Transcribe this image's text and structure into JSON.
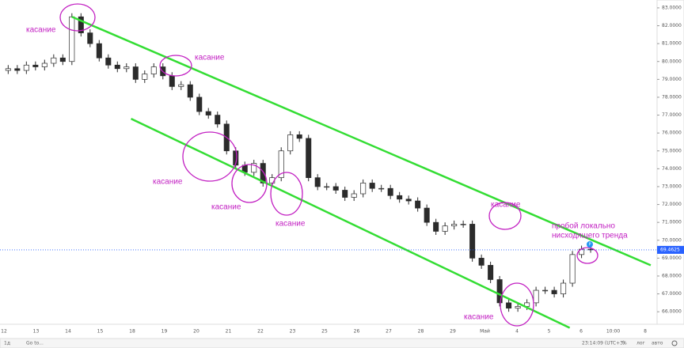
{
  "chart_data": {
    "type": "candlestick",
    "open": [
      79.5,
      79.6,
      79.5,
      79.8,
      79.7,
      79.9,
      80.2,
      80.0,
      82.5,
      81.6,
      81.0,
      80.2,
      79.8,
      79.6,
      79.7,
      79.0,
      79.3,
      79.7,
      79.2,
      78.6,
      78.7,
      78.0,
      77.2,
      77.0,
      76.5,
      75.0,
      74.2,
      73.8,
      74.3,
      73.2,
      73.5,
      75.0,
      75.9,
      75.7,
      73.5,
      73.0,
      73.0,
      72.8,
      72.4,
      72.6,
      73.2,
      72.9,
      72.9,
      72.5,
      72.3,
      72.2,
      71.8,
      71.0,
      70.5,
      70.8,
      70.9,
      70.9,
      69.0,
      68.6,
      67.8,
      66.5,
      66.2,
      66.3,
      66.5,
      67.2,
      67.2,
      67.0,
      67.6,
      69.2,
      69.5
    ],
    "high": [
      79.8,
      79.8,
      80.0,
      80.0,
      80.1,
      80.4,
      80.4,
      82.7,
      82.7,
      81.8,
      81.2,
      80.4,
      80.0,
      79.9,
      79.9,
      79.5,
      79.9,
      79.9,
      79.4,
      78.9,
      78.9,
      78.2,
      77.4,
      77.2,
      76.7,
      75.2,
      74.4,
      74.5,
      74.5,
      73.7,
      75.2,
      76.1,
      76.1,
      75.9,
      73.7,
      73.2,
      73.2,
      73.0,
      72.8,
      73.4,
      73.4,
      73.1,
      73.1,
      72.7,
      72.5,
      72.4,
      72.0,
      71.2,
      71.0,
      71.1,
      71.1,
      71.1,
      69.2,
      68.8,
      68.0,
      66.7,
      66.5,
      66.7,
      67.4,
      67.4,
      67.4,
      67.8,
      69.4,
      69.7,
      69.7
    ],
    "low": [
      79.3,
      79.3,
      79.3,
      79.5,
      79.5,
      79.7,
      79.8,
      79.8,
      81.4,
      80.8,
      80.0,
      79.6,
      79.4,
      79.4,
      78.8,
      78.8,
      79.1,
      79.0,
      78.4,
      78.4,
      77.8,
      77.0,
      76.8,
      76.3,
      74.8,
      74.0,
      73.6,
      73.6,
      73.0,
      73.0,
      73.3,
      74.8,
      75.5,
      73.3,
      72.8,
      72.8,
      72.6,
      72.2,
      72.2,
      72.4,
      72.7,
      72.7,
      72.3,
      72.1,
      72.0,
      71.6,
      70.8,
      70.3,
      70.3,
      70.6,
      70.7,
      68.8,
      68.4,
      67.6,
      66.3,
      66.0,
      66.0,
      66.1,
      66.3,
      67.0,
      66.8,
      66.8,
      67.4,
      69.0,
      69.3
    ],
    "close": [
      79.6,
      79.5,
      79.8,
      79.7,
      79.9,
      80.2,
      80.0,
      82.5,
      81.6,
      81.0,
      80.2,
      79.8,
      79.6,
      79.7,
      79.0,
      79.3,
      79.7,
      79.2,
      78.6,
      78.7,
      78.0,
      77.2,
      77.0,
      76.5,
      75.0,
      74.2,
      73.8,
      74.3,
      73.2,
      73.5,
      75.0,
      75.9,
      75.7,
      73.5,
      73.0,
      73.0,
      72.8,
      72.4,
      72.6,
      73.2,
      72.9,
      72.9,
      72.5,
      72.3,
      72.2,
      71.8,
      71.0,
      70.5,
      70.8,
      70.9,
      70.9,
      69.0,
      68.6,
      67.8,
      66.5,
      66.2,
      66.3,
      66.5,
      67.2,
      67.2,
      67.0,
      67.6,
      69.2,
      69.5,
      69.4625
    ],
    "up_color": "#ffffff",
    "down_color": "#2b2b2b",
    "wick_color": "#2b2b2b",
    "xlim": [
      -0.9,
      71.3
    ],
    "ylim": [
      65.3,
      83.44
    ],
    "yticks": [
      {
        "value": 83,
        "label": "83.0000"
      },
      {
        "value": 82,
        "label": "82.0000"
      },
      {
        "value": 81,
        "label": "81.0000"
      },
      {
        "value": 80,
        "label": "80.0000"
      },
      {
        "value": 79,
        "label": "79.0000"
      },
      {
        "value": 78,
        "label": "78.0000"
      },
      {
        "value": 77,
        "label": "77.0000"
      },
      {
        "value": 76,
        "label": "76.0000"
      },
      {
        "value": 75,
        "label": "75.0000"
      },
      {
        "value": 74,
        "label": "74.0000"
      },
      {
        "value": 73,
        "label": "73.0000"
      },
      {
        "value": 72,
        "label": "72.0000"
      },
      {
        "value": 71,
        "label": "71.0000"
      },
      {
        "value": 70,
        "label": "70.0000"
      },
      {
        "value": 69,
        "label": "69.0000"
      },
      {
        "value": 68,
        "label": "68.0000"
      },
      {
        "value": 67,
        "label": "67.0000"
      },
      {
        "value": 66,
        "label": "66.0000"
      }
    ],
    "x_labels": [
      "12",
      "13",
      "14",
      "15",
      "18",
      "19",
      "20",
      "21",
      "22",
      "23",
      "25",
      "26",
      "27",
      "28",
      "29",
      "Май",
      "4",
      "5",
      "6",
      "10:00",
      "8"
    ],
    "last_price": 69.4625,
    "last_price_color": "#2962ff",
    "trend_lines": [
      {
        "color": "#33dd33",
        "start": [
          7,
          82.5
        ],
        "end": [
          70.6,
          68.6
        ]
      },
      {
        "color": "#33dd33",
        "start": [
          13.5,
          76.8
        ],
        "end": [
          61.7,
          65.1
        ]
      }
    ],
    "annotations": [
      "касание",
      "касание",
      "касание",
      "касание",
      "касание",
      "касание",
      "касание"
    ],
    "breakout_note": [
      "пробой локально",
      "нисходящего тренда"
    ],
    "marker_label": "P"
  },
  "toolbar": {
    "interval": "1д",
    "goto": "Go to...",
    "clock": "23:14:09 (UTC+3)",
    "percent": "%",
    "log": "лог",
    "auto": "авто"
  }
}
